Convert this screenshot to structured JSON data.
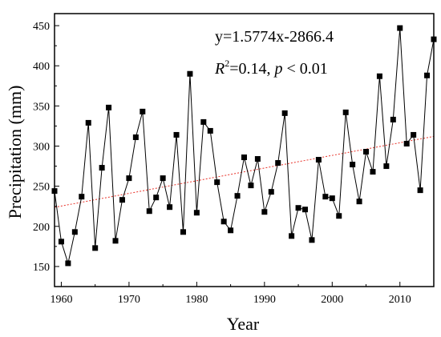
{
  "chart_data": {
    "type": "line",
    "title": "",
    "xlabel": "Year",
    "ylabel": "Precipitation (mm)",
    "xlim": [
      1959,
      2015
    ],
    "ylim": [
      125,
      465
    ],
    "xticks": [
      1960,
      1970,
      1980,
      1990,
      2000,
      2010
    ],
    "yticks": [
      150,
      200,
      250,
      300,
      350,
      400,
      450
    ],
    "grid": false,
    "legend": "none",
    "annotation": {
      "equation": "y=1.5774x-2866.4",
      "r2_symbol": "R",
      "r2_sup": "2",
      "r2_value": "=0.14, ",
      "p_symbol": "p",
      "p_value": " < 0.01"
    },
    "colors": {
      "series": "#000000",
      "trend": "#e8332a"
    },
    "series": [
      {
        "x": [
          1959,
          1960,
          1961,
          1962,
          1963,
          1964,
          1965,
          1966,
          1967,
          1968,
          1969,
          1970,
          1971,
          1972,
          1973,
          1974,
          1975,
          1976,
          1977,
          1978,
          1979,
          1980,
          1981,
          1982,
          1983,
          1984,
          1985,
          1986,
          1987,
          1988,
          1989,
          1990,
          1991,
          1992,
          1993,
          1994,
          1995,
          1996,
          1997,
          1998,
          1999,
          2000,
          2001,
          2002,
          2003,
          2004,
          2005,
          2006,
          2007,
          2008,
          2009,
          2010,
          2011,
          2012,
          2013,
          2014,
          2015
        ],
        "values": [
          244,
          181,
          154,
          193,
          237,
          329,
          173,
          273,
          348,
          182,
          233,
          260,
          311,
          343,
          219,
          236,
          260,
          224,
          314,
          193,
          390,
          217,
          330,
          319,
          255,
          206,
          195,
          238,
          286,
          251,
          284,
          218,
          243,
          279,
          341,
          188,
          223,
          221,
          183,
          283,
          237,
          235,
          213,
          342,
          277,
          231,
          293,
          268,
          387,
          275,
          333,
          447,
          303,
          314,
          245,
          388,
          433
        ]
      }
    ],
    "trend": {
      "slope": 1.5774,
      "intercept": -2866.4
    }
  }
}
